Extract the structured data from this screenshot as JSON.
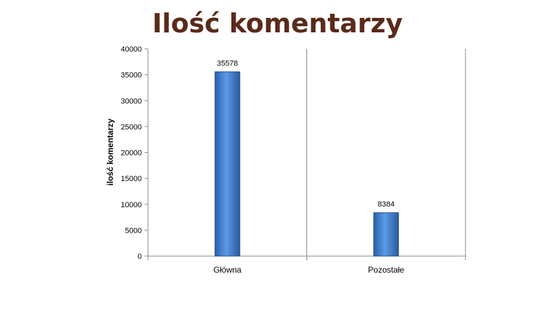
{
  "chart_data": {
    "type": "bar",
    "title": "Ilość komentarzy",
    "xlabel": "",
    "ylabel": "ilość komentarzy",
    "categories": [
      "Główna",
      "Pozostałe"
    ],
    "values": [
      35578,
      8384
    ],
    "data_labels": [
      "35578",
      "8384"
    ],
    "ylim": [
      0,
      40000
    ],
    "yticks": [
      0,
      5000,
      10000,
      15000,
      20000,
      25000,
      30000,
      35000,
      40000
    ],
    "grid": false,
    "legend": "none",
    "bar_color": "#3a78c8"
  }
}
